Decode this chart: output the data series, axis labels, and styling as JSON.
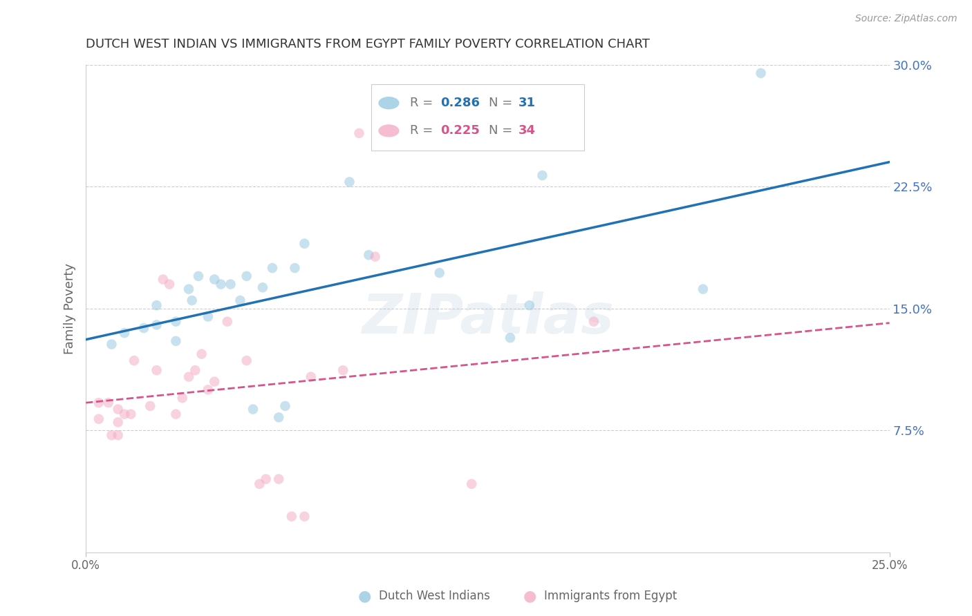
{
  "title": "DUTCH WEST INDIAN VS IMMIGRANTS FROM EGYPT FAMILY POVERTY CORRELATION CHART",
  "source": "Source: ZipAtlas.com",
  "ylabel_label": "Family Poverty",
  "xlim": [
    0.0,
    0.25
  ],
  "ylim": [
    0.0,
    0.3
  ],
  "ytick_labels_right": [
    "7.5%",
    "15.0%",
    "22.5%",
    "30.0%"
  ],
  "yticks_right": [
    0.075,
    0.15,
    0.225,
    0.3
  ],
  "series1_label": "Dutch West Indians",
  "series2_label": "Immigrants from Egypt",
  "series1_color": "#92c5de",
  "series2_color": "#f4a7c3",
  "series1_line_color": "#2171b5",
  "series2_line_color": "#d6548a",
  "watermark_text": "ZIPatlas",
  "blue_dots_x": [
    0.008,
    0.012,
    0.018,
    0.022,
    0.022,
    0.028,
    0.028,
    0.032,
    0.033,
    0.035,
    0.038,
    0.04,
    0.042,
    0.045,
    0.048,
    0.05,
    0.052,
    0.055,
    0.058,
    0.06,
    0.062,
    0.065,
    0.068,
    0.082,
    0.088,
    0.11,
    0.132,
    0.138,
    0.142,
    0.192,
    0.21
  ],
  "blue_dots_y": [
    0.128,
    0.135,
    0.138,
    0.152,
    0.14,
    0.13,
    0.142,
    0.162,
    0.155,
    0.17,
    0.145,
    0.168,
    0.165,
    0.165,
    0.155,
    0.17,
    0.088,
    0.163,
    0.175,
    0.083,
    0.09,
    0.175,
    0.19,
    0.228,
    0.183,
    0.172,
    0.132,
    0.152,
    0.232,
    0.162,
    0.295
  ],
  "pink_dots_x": [
    0.004,
    0.004,
    0.007,
    0.008,
    0.01,
    0.01,
    0.01,
    0.012,
    0.014,
    0.015,
    0.02,
    0.022,
    0.024,
    0.026,
    0.028,
    0.03,
    0.032,
    0.034,
    0.036,
    0.038,
    0.04,
    0.044,
    0.05,
    0.054,
    0.056,
    0.06,
    0.064,
    0.068,
    0.07,
    0.08,
    0.085,
    0.09,
    0.12,
    0.158
  ],
  "pink_dots_y": [
    0.082,
    0.092,
    0.092,
    0.072,
    0.072,
    0.08,
    0.088,
    0.085,
    0.085,
    0.118,
    0.09,
    0.112,
    0.168,
    0.165,
    0.085,
    0.095,
    0.108,
    0.112,
    0.122,
    0.1,
    0.105,
    0.142,
    0.118,
    0.042,
    0.045,
    0.045,
    0.022,
    0.022,
    0.108,
    0.112,
    0.258,
    0.182,
    0.042,
    0.142
  ],
  "background_color": "#ffffff",
  "grid_color": "#cccccc",
  "title_color": "#333333",
  "right_tick_color": "#4472c4",
  "dot_size": 110,
  "dot_alpha": 0.5,
  "legend_r1": "0.286",
  "legend_n1": "31",
  "legend_r2": "0.225",
  "legend_n2": "34"
}
